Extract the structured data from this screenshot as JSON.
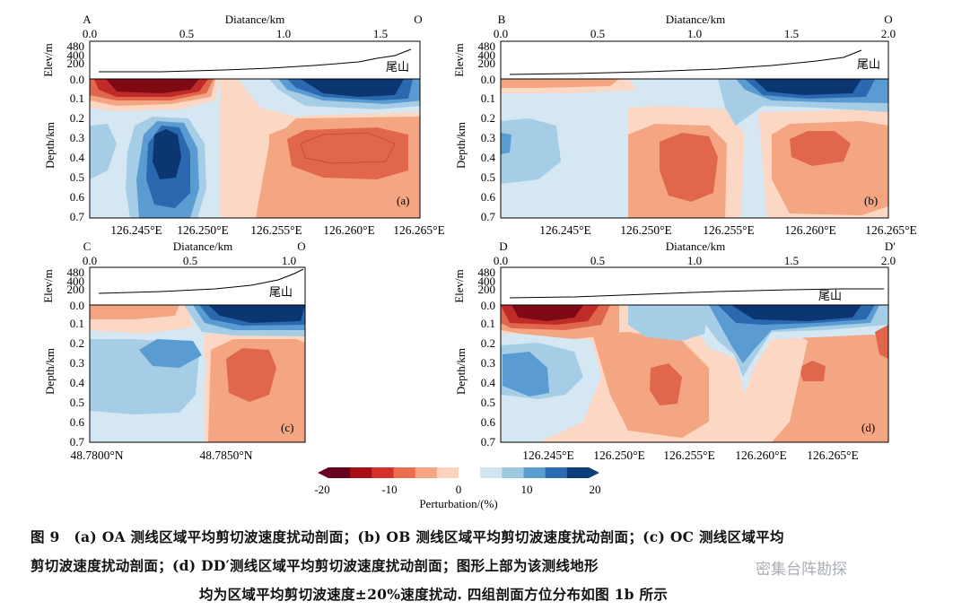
{
  "panels": [
    {
      "id": "a",
      "start": "A",
      "end": "O",
      "distance_label": "Diatance/km",
      "distance_ticks": [
        "0.0",
        "0.5",
        "1.0",
        "1.5"
      ],
      "elev_label": "Elev/m",
      "elev_ticks": [
        "480",
        "400",
        "200",
        "0.0"
      ],
      "place_label": "尾山",
      "depth_label": "Depth/km",
      "depth_ticks": [
        "0.1",
        "0.2",
        "0.3",
        "0.4",
        "0.5",
        "0.6",
        "0.7"
      ],
      "bottom_ticks": [
        "126.245°E",
        "126.250°E",
        "126.255°E",
        "126.260°E",
        "126.265°E"
      ],
      "panel_tag": "(a)"
    },
    {
      "id": "b",
      "start": "B",
      "end": "O",
      "distance_label": "Diatance/km",
      "distance_ticks": [
        "0.0",
        "0.5",
        "1.0",
        "1.5",
        "2.0"
      ],
      "elev_label": "Elev/m",
      "elev_ticks": [
        "480",
        "400",
        "200",
        "0.0"
      ],
      "place_label": "尾山",
      "depth_label": "Depth/km",
      "depth_ticks": [
        "0.1",
        "0.2",
        "0.3",
        "0.4",
        "0.5",
        "0.6",
        "0.7"
      ],
      "bottom_ticks": [
        "126.245°E",
        "126.250°E",
        "126.255°E",
        "126.260°E",
        "126.265°E"
      ],
      "panel_tag": "(b)"
    },
    {
      "id": "c",
      "start": "C",
      "end": "O",
      "distance_label": "Diatance/km",
      "distance_ticks": [
        "0.0",
        "0.5",
        "1.0"
      ],
      "elev_label": "Elev/m",
      "elev_ticks": [
        "480",
        "400",
        "200",
        "0.0"
      ],
      "place_label": "尾山",
      "depth_label": "Depth/km",
      "depth_ticks": [
        "0.1",
        "0.2",
        "0.3",
        "0.4",
        "0.5",
        "0.6",
        "0.7"
      ],
      "bottom_ticks": [
        "48.7800°N",
        "48.7850°N"
      ],
      "panel_tag": "(c)"
    },
    {
      "id": "d",
      "start": "D",
      "end": "D′",
      "distance_label": "Diatance/km",
      "distance_ticks": [
        "0.0",
        "0.5",
        "1.0",
        "1.5",
        "2.0"
      ],
      "elev_label": "Elev/m",
      "elev_ticks": [
        "480",
        "400",
        "200",
        "0.0"
      ],
      "place_label": "尾山",
      "depth_label": "Depth/km",
      "depth_ticks": [
        "0.1",
        "0.2",
        "0.3",
        "0.4",
        "0.5",
        "0.6",
        "0.7"
      ],
      "bottom_ticks": [
        "126.245°E",
        "126.250°E",
        "126.255°E",
        "126.260°E",
        "126.265°E"
      ],
      "panel_tag": "(d)"
    }
  ],
  "colorbar": {
    "ticks": [
      "-20",
      "-10",
      "0",
      "10",
      "20"
    ],
    "label": "Perturbation/(%)",
    "colors": [
      "#67001f",
      "#a50f15",
      "#d6302b",
      "#ea6e4e",
      "#f6a582",
      "#fbd3be",
      "#ffffff",
      "#d1e5f0",
      "#9ecae1",
      "#5a9ed0",
      "#2b6cb2",
      "#0b3d7a"
    ]
  },
  "caption": {
    "line1": "图 9　(a) OA 测线区域平均剪切波速度扰动剖面；(b) OB 测线区域平均剪切波速度扰动剖面；(c) OC 测线区域平均",
    "line2": "剪切波速度扰动剖面；(d) DD′测线区域平均剪切波速度扰动剖面；图形上部为该测线地形",
    "line3": "均为区域平均剪切波速度±20%速度扰动. 四组剖面方位分布如图 1b 所示"
  },
  "watermark": "密集台阵勘探",
  "palette": {
    "dk_red": "#7f0a16",
    "red": "#c02a28",
    "mid_red": "#e0674c",
    "lt_red": "#f4a582",
    "pale_red": "#fbd7c4",
    "white": "#f7f7f7",
    "pale_blue": "#d4e7f3",
    "lt_blue": "#a6cde6",
    "mid_blue": "#5a9bd1",
    "blue": "#2a68b0",
    "dk_blue": "#0b3672"
  }
}
